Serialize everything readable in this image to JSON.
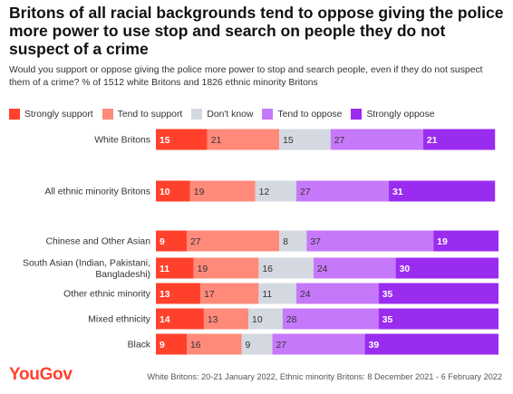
{
  "header": {
    "title": "Britons of all racial backgrounds tend to oppose giving the police more power to use stop and search on people they do not suspect of a crime",
    "subtitle": "Would you support or oppose giving the police more power to stop and search people, even if they do not suspect them of a crime? % of 1512 white Britons and 1826 ethnic minority Britons"
  },
  "legend": [
    {
      "label": "Strongly support",
      "color": "#ff412c"
    },
    {
      "label": "Tend to support",
      "color": "#ff8a7a"
    },
    {
      "label": "Don't know",
      "color": "#d4d8e0"
    },
    {
      "label": "Tend to oppose",
      "color": "#c678fa"
    },
    {
      "label": "Strongly oppose",
      "color": "#9a2cf0"
    }
  ],
  "chart_data": {
    "type": "bar",
    "orientation": "horizontal",
    "stacked": true,
    "title": "Britons of all racial backgrounds tend to oppose giving the police more power to use stop and search on people they do not suspect of a crime",
    "categories": [
      "White Britons",
      "All ethnic minority Britons",
      "Chinese and Other Asian",
      "South Asian (Indian, Pakistani, Bangladeshi)",
      "Other ethnic minority",
      "Mixed ethnicity",
      "Black"
    ],
    "series": [
      {
        "name": "Strongly support",
        "color": "#ff412c",
        "values": [
          15,
          10,
          9,
          11,
          13,
          14,
          9
        ]
      },
      {
        "name": "Tend to support",
        "color": "#ff8a7a",
        "values": [
          21,
          19,
          27,
          19,
          17,
          13,
          16
        ]
      },
      {
        "name": "Don't know",
        "color": "#d4d8e0",
        "values": [
          15,
          12,
          8,
          16,
          11,
          10,
          9
        ]
      },
      {
        "name": "Tend to oppose",
        "color": "#c678fa",
        "values": [
          27,
          27,
          37,
          24,
          24,
          28,
          27
        ]
      },
      {
        "name": "Strongly oppose",
        "color": "#9a2cf0",
        "values": [
          21,
          31,
          19,
          30,
          35,
          35,
          39
        ]
      }
    ],
    "xlim": [
      0,
      100
    ],
    "legend_position": "top",
    "grid": false
  },
  "footer": {
    "brand": "YouGov",
    "note": "White Britons: 20-21 January 2022, Ethnic minority Britons: 8 December 2021 - 6 February 2022"
  }
}
